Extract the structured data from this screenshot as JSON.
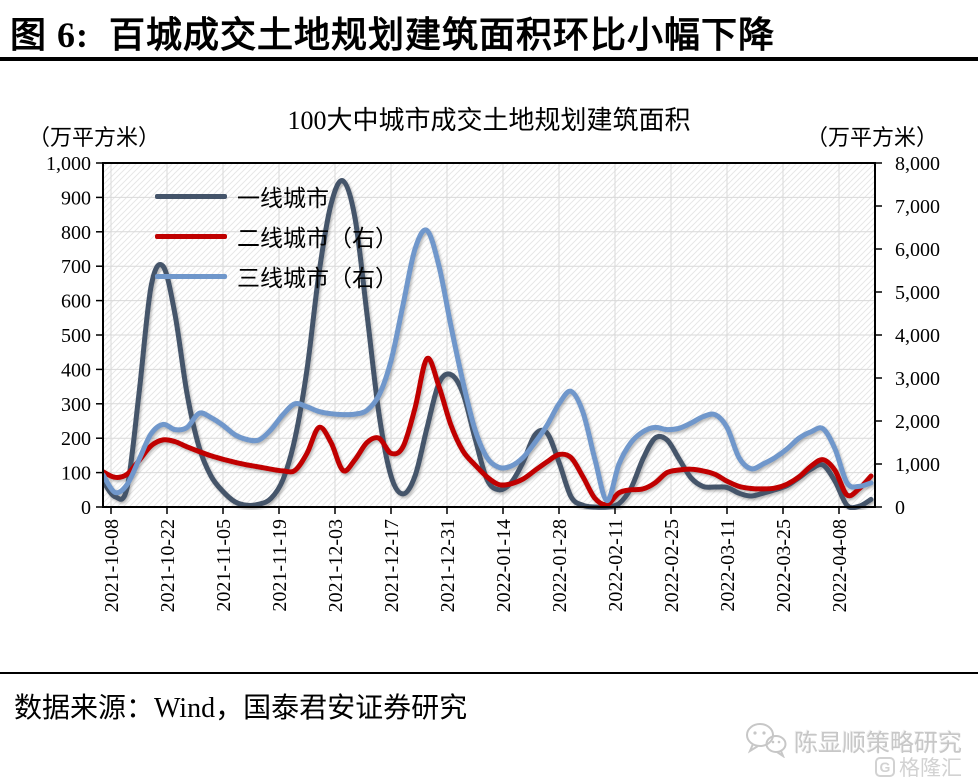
{
  "page": {
    "title": "图 6:  百城成交土地规划建筑面积环比小幅下降",
    "source_label": "数据来源：Wind，国泰君安证券研究",
    "watermark": {
      "account": "陈显顺策略研究",
      "platform": "格隆汇",
      "platform_logo": "G"
    }
  },
  "chart": {
    "title": "100大中城市成交土地规划建筑面积",
    "left_unit": "（万平方米）",
    "right_unit": "（万平方米）",
    "legend": [
      {
        "label": "一线城市"
      },
      {
        "label": "二线城市（右）"
      },
      {
        "label": "三线城市（右）"
      }
    ]
  },
  "chart_data": {
    "type": "line",
    "title": "100大中城市成交土地规划建筑面积",
    "grid": true,
    "legend_position": "top-left-inside",
    "plot_background": "diagonal-hatch",
    "grid_color": "#D9D9D9",
    "hatch_color": "#E7E7E7",
    "axis_color": "#000000",
    "left_axis": {
      "label": "（万平方米）",
      "min": 0,
      "max": 1000,
      "step": 100
    },
    "right_axis": {
      "label": "（万平方米）",
      "min": 0,
      "max": 8000,
      "step": 1000
    },
    "x_domain": [
      "2021-10-06",
      "2022-04-17"
    ],
    "x_tick_labels": [
      "2021-10-08",
      "2021-10-22",
      "2021-11-05",
      "2021-11-19",
      "2021-12-03",
      "2021-12-17",
      "2021-12-31",
      "2022-01-14",
      "2022-01-28",
      "2022-02-11",
      "2022-02-25",
      "2022-03-11",
      "2022-03-25",
      "2022-04-08"
    ],
    "dates": [
      "2021-10-06",
      "2021-10-09",
      "2021-10-12",
      "2021-10-15",
      "2021-10-18",
      "2021-10-21",
      "2021-10-24",
      "2021-10-27",
      "2021-10-30",
      "2021-11-02",
      "2021-11-05",
      "2021-11-08",
      "2021-11-11",
      "2021-11-14",
      "2021-11-17",
      "2021-11-20",
      "2021-11-23",
      "2021-11-26",
      "2021-11-29",
      "2021-12-02",
      "2021-12-05",
      "2021-12-08",
      "2021-12-11",
      "2021-12-14",
      "2021-12-17",
      "2021-12-20",
      "2021-12-23",
      "2021-12-26",
      "2021-12-29",
      "2022-01-01",
      "2022-01-04",
      "2022-01-07",
      "2022-01-10",
      "2022-01-13",
      "2022-01-16",
      "2022-01-19",
      "2022-01-22",
      "2022-01-25",
      "2022-01-28",
      "2022-01-31",
      "2022-02-03",
      "2022-02-06",
      "2022-02-09",
      "2022-02-12",
      "2022-02-15",
      "2022-02-18",
      "2022-02-21",
      "2022-02-24",
      "2022-02-27",
      "2022-03-02",
      "2022-03-05",
      "2022-03-08",
      "2022-03-11",
      "2022-03-14",
      "2022-03-17",
      "2022-03-20",
      "2022-03-23",
      "2022-03-26",
      "2022-03-29",
      "2022-04-01",
      "2022-04-04",
      "2022-04-07",
      "2022-04-10",
      "2022-04-13",
      "2022-04-16"
    ],
    "series": [
      {
        "name": "一线城市",
        "axis": "left",
        "color": "#44546A",
        "values": [
          75,
          30,
          55,
          330,
          640,
          700,
          560,
          330,
          175,
          90,
          45,
          15,
          5,
          8,
          25,
          80,
          200,
          400,
          680,
          880,
          948,
          840,
          560,
          270,
          90,
          38,
          90,
          230,
          360,
          385,
          330,
          200,
          80,
          50,
          70,
          130,
          210,
          215,
          130,
          30,
          5,
          0,
          0,
          10,
          55,
          140,
          200,
          195,
          140,
          85,
          60,
          58,
          57,
          40,
          32,
          40,
          50,
          62,
          85,
          110,
          122,
          75,
          5,
          2,
          22
        ]
      },
      {
        "name": "二线城市（右）",
        "axis": "right",
        "color": "#C00000",
        "values": [
          820,
          690,
          760,
          1080,
          1420,
          1560,
          1520,
          1400,
          1290,
          1190,
          1110,
          1040,
          980,
          930,
          880,
          840,
          850,
          1250,
          1850,
          1500,
          850,
          1100,
          1500,
          1600,
          1250,
          1400,
          2300,
          3450,
          2800,
          1900,
          1300,
          980,
          700,
          520,
          540,
          650,
          850,
          1050,
          1220,
          1150,
          700,
          200,
          60,
          330,
          400,
          420,
          560,
          800,
          860,
          880,
          840,
          760,
          600,
          480,
          430,
          420,
          440,
          530,
          700,
          950,
          1100,
          850,
          280,
          420,
          720
        ]
      },
      {
        "name": "三线城市（右）",
        "axis": "right",
        "color": "#6F97CB",
        "values": [
          750,
          340,
          520,
          1100,
          1700,
          1920,
          1800,
          1850,
          2180,
          2080,
          1900,
          1680,
          1570,
          1560,
          1800,
          2150,
          2400,
          2330,
          2220,
          2170,
          2150,
          2160,
          2250,
          2600,
          3400,
          4700,
          6000,
          6430,
          5600,
          4200,
          2900,
          1800,
          1150,
          920,
          950,
          1150,
          1500,
          1900,
          2400,
          2690,
          2200,
          1100,
          150,
          1000,
          1500,
          1750,
          1850,
          1800,
          1830,
          1950,
          2100,
          2150,
          1850,
          1150,
          890,
          1000,
          1150,
          1350,
          1600,
          1750,
          1820,
          1350,
          560,
          480,
          560
        ]
      }
    ]
  }
}
